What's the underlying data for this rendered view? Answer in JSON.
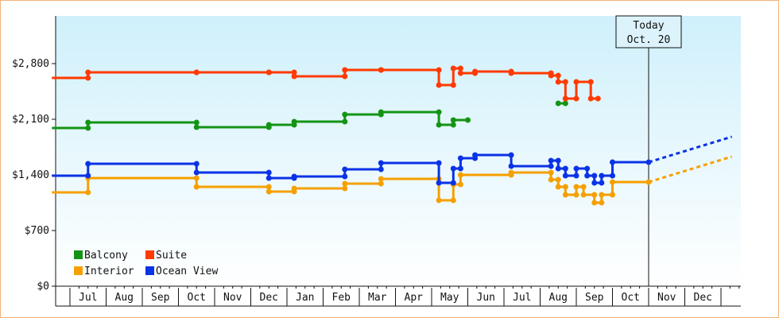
{
  "chart_data": {
    "type": "line",
    "title": "",
    "xlabel": "",
    "ylabel": "",
    "ylim": [
      0,
      3400
    ],
    "y_ticks": [
      "$0",
      "$700",
      "$1,400",
      "$2,100",
      "$2,800"
    ],
    "y_tick_values": [
      0,
      700,
      1400,
      2100,
      2800
    ],
    "months": [
      "Jul",
      "Aug",
      "Sep",
      "Oct",
      "Nov",
      "Dec",
      "Jan",
      "Feb",
      "Mar",
      "Apr",
      "May",
      "Jun",
      "Jul",
      "Aug",
      "Sep",
      "Oct",
      "Nov",
      "Dec"
    ],
    "x_unit": "months from start of first July",
    "xlim": [
      -0.5,
      18.3
    ],
    "today": {
      "line1": "Today",
      "line2": "Oct. 20",
      "x": 16.0
    },
    "legend": {
      "placement": "bottom-left",
      "items": [
        {
          "label": "Balcony",
          "color": "#149414"
        },
        {
          "label": "Suite",
          "color": "#ff3a00"
        },
        {
          "label": "Interior",
          "color": "#f5a000"
        },
        {
          "label": "Ocean View",
          "color": "#0a32e6"
        }
      ]
    },
    "series": [
      {
        "name": "Balcony",
        "color": "#149414",
        "segments": [
          [
            [
              -0.5,
              1990
            ],
            [
              0.5,
              1990
            ],
            [
              0.5,
              2060
            ],
            [
              3.5,
              2060
            ],
            [
              3.5,
              2000
            ],
            [
              5.5,
              2000
            ],
            [
              5.5,
              2030
            ],
            [
              6.2,
              2030
            ],
            [
              6.2,
              2070
            ],
            [
              7.6,
              2070
            ],
            [
              7.6,
              2160
            ],
            [
              8.6,
              2160
            ],
            [
              8.6,
              2190
            ],
            [
              10.2,
              2190
            ],
            [
              10.2,
              2030
            ],
            [
              10.6,
              2030
            ],
            [
              10.6,
              2090
            ],
            [
              11.0,
              2090
            ]
          ],
          [
            [
              13.5,
              2300
            ],
            [
              13.7,
              2300
            ]
          ]
        ]
      },
      {
        "name": "Suite",
        "color": "#ff3a00",
        "segments": [
          [
            [
              -0.5,
              2620
            ],
            [
              0.5,
              2620
            ],
            [
              0.5,
              2690
            ],
            [
              3.5,
              2690
            ],
            [
              3.5,
              2690
            ],
            [
              5.5,
              2690
            ],
            [
              5.5,
              2690
            ],
            [
              6.2,
              2690
            ],
            [
              6.2,
              2640
            ],
            [
              7.6,
              2640
            ],
            [
              7.6,
              2720
            ],
            [
              8.6,
              2720
            ],
            [
              8.6,
              2720
            ],
            [
              10.2,
              2720
            ],
            [
              10.2,
              2530
            ],
            [
              10.6,
              2530
            ],
            [
              10.6,
              2740
            ],
            [
              10.8,
              2740
            ],
            [
              10.8,
              2680
            ],
            [
              11.2,
              2680
            ],
            [
              11.2,
              2700
            ],
            [
              12.2,
              2700
            ],
            [
              12.2,
              2680
            ],
            [
              13.3,
              2680
            ],
            [
              13.3,
              2650
            ],
            [
              13.5,
              2650
            ],
            [
              13.5,
              2570
            ],
            [
              13.7,
              2570
            ],
            [
              13.7,
              2360
            ],
            [
              14.0,
              2360
            ],
            [
              14.0,
              2570
            ],
            [
              14.4,
              2570
            ],
            [
              14.4,
              2360
            ],
            [
              14.6,
              2360
            ]
          ]
        ]
      },
      {
        "name": "Interior",
        "color": "#f5a000",
        "segments": [
          [
            [
              -0.5,
              1180
            ],
            [
              0.5,
              1180
            ],
            [
              0.5,
              1360
            ],
            [
              3.5,
              1360
            ],
            [
              3.5,
              1250
            ],
            [
              5.5,
              1250
            ],
            [
              5.5,
              1190
            ],
            [
              6.2,
              1190
            ],
            [
              6.2,
              1230
            ],
            [
              7.6,
              1230
            ],
            [
              7.6,
              1290
            ],
            [
              8.6,
              1290
            ],
            [
              8.6,
              1350
            ],
            [
              10.2,
              1350
            ],
            [
              10.2,
              1080
            ],
            [
              10.6,
              1080
            ],
            [
              10.6,
              1280
            ],
            [
              10.8,
              1280
            ],
            [
              10.8,
              1400
            ],
            [
              12.2,
              1400
            ],
            [
              12.2,
              1430
            ],
            [
              13.3,
              1430
            ],
            [
              13.3,
              1340
            ],
            [
              13.5,
              1340
            ],
            [
              13.5,
              1250
            ],
            [
              13.7,
              1250
            ],
            [
              13.7,
              1150
            ],
            [
              14.0,
              1150
            ],
            [
              14.0,
              1250
            ],
            [
              14.2,
              1250
            ],
            [
              14.2,
              1150
            ],
            [
              14.5,
              1150
            ],
            [
              14.5,
              1050
            ],
            [
              14.7,
              1050
            ],
            [
              14.7,
              1150
            ],
            [
              15.0,
              1150
            ],
            [
              15.0,
              1310
            ],
            [
              16.0,
              1310
            ]
          ]
        ],
        "projection": [
          [
            16.0,
            1310
          ],
          [
            18.3,
            1630
          ]
        ]
      },
      {
        "name": "Ocean View",
        "color": "#0a32e6",
        "segments": [
          [
            [
              -0.5,
              1390
            ],
            [
              0.5,
              1390
            ],
            [
              0.5,
              1540
            ],
            [
              3.5,
              1540
            ],
            [
              3.5,
              1430
            ],
            [
              5.5,
              1430
            ],
            [
              5.5,
              1360
            ],
            [
              6.2,
              1360
            ],
            [
              6.2,
              1380
            ],
            [
              7.6,
              1380
            ],
            [
              7.6,
              1470
            ],
            [
              8.6,
              1470
            ],
            [
              8.6,
              1550
            ],
            [
              10.2,
              1550
            ],
            [
              10.2,
              1300
            ],
            [
              10.6,
              1300
            ],
            [
              10.6,
              1480
            ],
            [
              10.8,
              1480
            ],
            [
              10.8,
              1610
            ],
            [
              11.2,
              1610
            ],
            [
              11.2,
              1650
            ],
            [
              12.2,
              1650
            ],
            [
              12.2,
              1510
            ],
            [
              13.3,
              1510
            ],
            [
              13.3,
              1580
            ],
            [
              13.5,
              1580
            ],
            [
              13.5,
              1480
            ],
            [
              13.7,
              1480
            ],
            [
              13.7,
              1390
            ],
            [
              14.0,
              1390
            ],
            [
              14.0,
              1480
            ],
            [
              14.3,
              1480
            ],
            [
              14.3,
              1390
            ],
            [
              14.5,
              1390
            ],
            [
              14.5,
              1300
            ],
            [
              14.7,
              1300
            ],
            [
              14.7,
              1390
            ],
            [
              15.0,
              1390
            ],
            [
              15.0,
              1560
            ],
            [
              16.0,
              1560
            ]
          ]
        ],
        "projection": [
          [
            16.0,
            1560
          ],
          [
            18.3,
            1880
          ]
        ]
      }
    ]
  }
}
